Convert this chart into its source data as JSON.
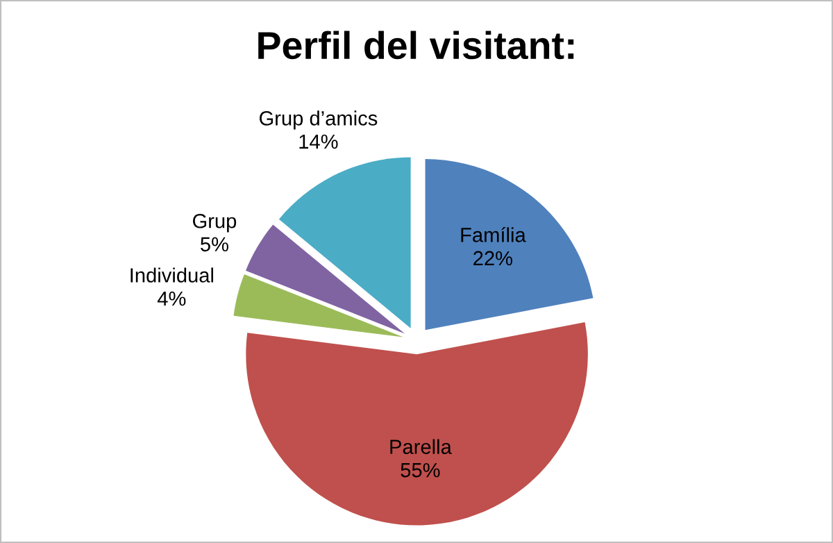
{
  "chart_data": {
    "type": "pie",
    "title": "Perfil del visitant:",
    "categories": [
      "Família",
      "Parella",
      "Individual",
      "Grup",
      "Grup d’amics"
    ],
    "values": [
      22,
      55,
      4,
      5,
      14
    ],
    "value_labels": [
      "22%",
      "55%",
      "4%",
      "5%",
      "14%"
    ],
    "colors": [
      "#4f81bd",
      "#c0504d",
      "#9bbb59",
      "#8064a2",
      "#4bacc6"
    ]
  }
}
